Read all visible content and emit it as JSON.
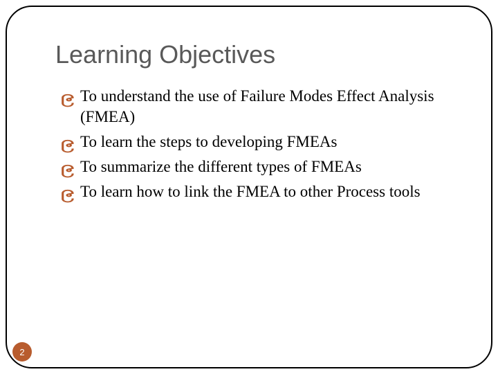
{
  "slide": {
    "title": "Learning Objectives",
    "title_color": "#595959",
    "title_fontsize": 36,
    "bullets": [
      {
        "text": "To understand the use of Failure Modes Effect Analysis (FMEA)"
      },
      {
        "text": "To learn the steps to developing FMEAs"
      },
      {
        "text": "To summarize the different types of FMEAs"
      },
      {
        "text": "To learn how to link the FMEA to other Process tools"
      }
    ],
    "bullet_glyph": "၉",
    "bullet_color": "#b85c2e",
    "body_fontsize": 23,
    "body_color": "#000000",
    "frame_border_color": "#000000",
    "frame_border_radius": 38,
    "background_color": "#ffffff",
    "page_number": "2",
    "page_badge_bg": "#b85c2e",
    "page_badge_fg": "#ffffff"
  }
}
